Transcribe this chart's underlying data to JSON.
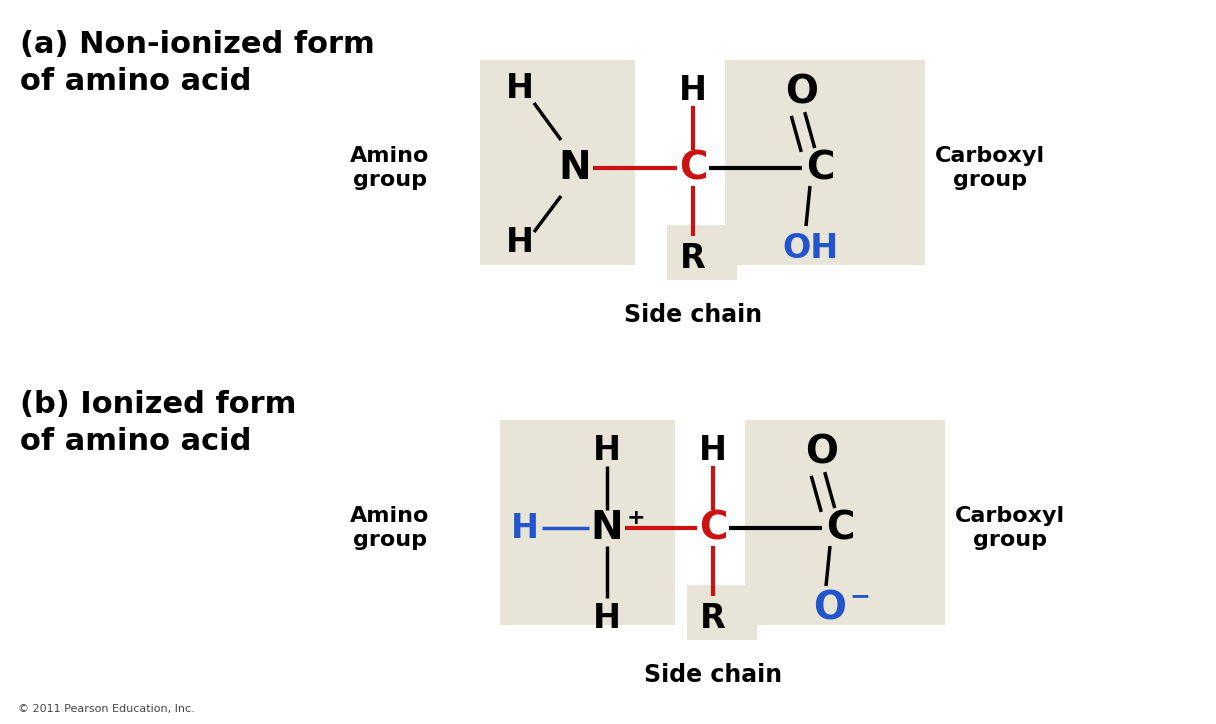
{
  "bg_color": "#ffffff",
  "box_color": "#e8e4d8",
  "title_a": "(a) Non-ionized form\nof amino acid",
  "title_b": "(b) Ionized form\nof amino acid",
  "copyright": "© 2011 Pearson Education, Inc.",
  "black": "#000000",
  "red": "#cc1111",
  "blue": "#2255cc",
  "label_amino": "Amino\ngroup",
  "label_carboxyl": "Carboxyl\ngroup",
  "label_sidechain": "Side chain"
}
